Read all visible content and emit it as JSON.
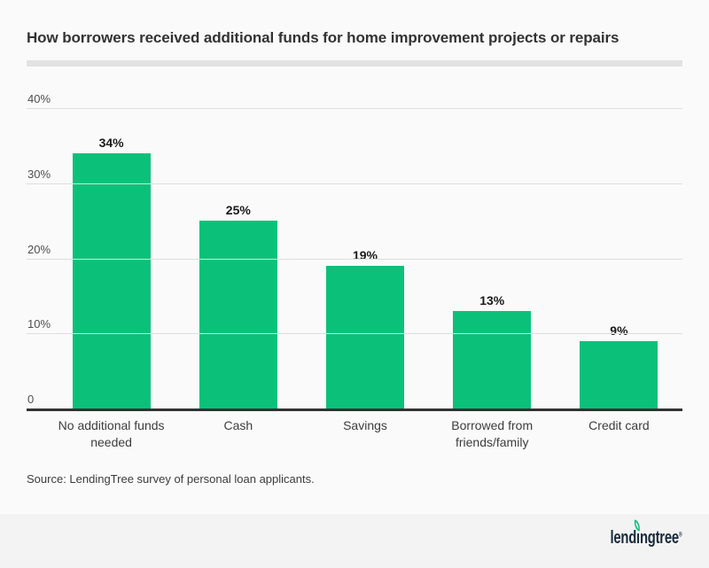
{
  "header": {
    "title": "How borrowers received additional funds for home improvement projects or repairs"
  },
  "chart_data": {
    "type": "bar",
    "title": "How borrowers received additional funds for home improvement projects or repairs",
    "categories": [
      "No additional funds needed",
      "Cash",
      "Savings",
      "Borrowed from friends/family",
      "Credit card"
    ],
    "values": [
      34,
      25,
      19,
      13,
      9
    ],
    "bar_labels": [
      "34%",
      "25%",
      "19%",
      "13%",
      "9%"
    ],
    "y_ticks": [
      {
        "label": "40%",
        "value": 40
      },
      {
        "label": "30%",
        "value": 30
      },
      {
        "label": "20%",
        "value": 20
      },
      {
        "label": "10%",
        "value": 10
      },
      {
        "label": "0",
        "value": 0
      }
    ],
    "ylim": [
      0,
      40
    ],
    "grid": true,
    "legend": "none",
    "xlabel": "",
    "ylabel": "",
    "bar_color": "#0bc17a",
    "gridline_color": "#dedede",
    "axis_color": "#333333"
  },
  "source": {
    "text": "Source: LendingTree survey of personal loan applicants."
  },
  "footer": {
    "logo": {
      "prefix": "lend",
      "dotless_i": "ı",
      "suffix": "ngtree",
      "trademark": "®"
    },
    "colors": {
      "background": "#f3f3f3",
      "wordmark": "#172a3d",
      "leaf": "#0bc17a"
    }
  }
}
